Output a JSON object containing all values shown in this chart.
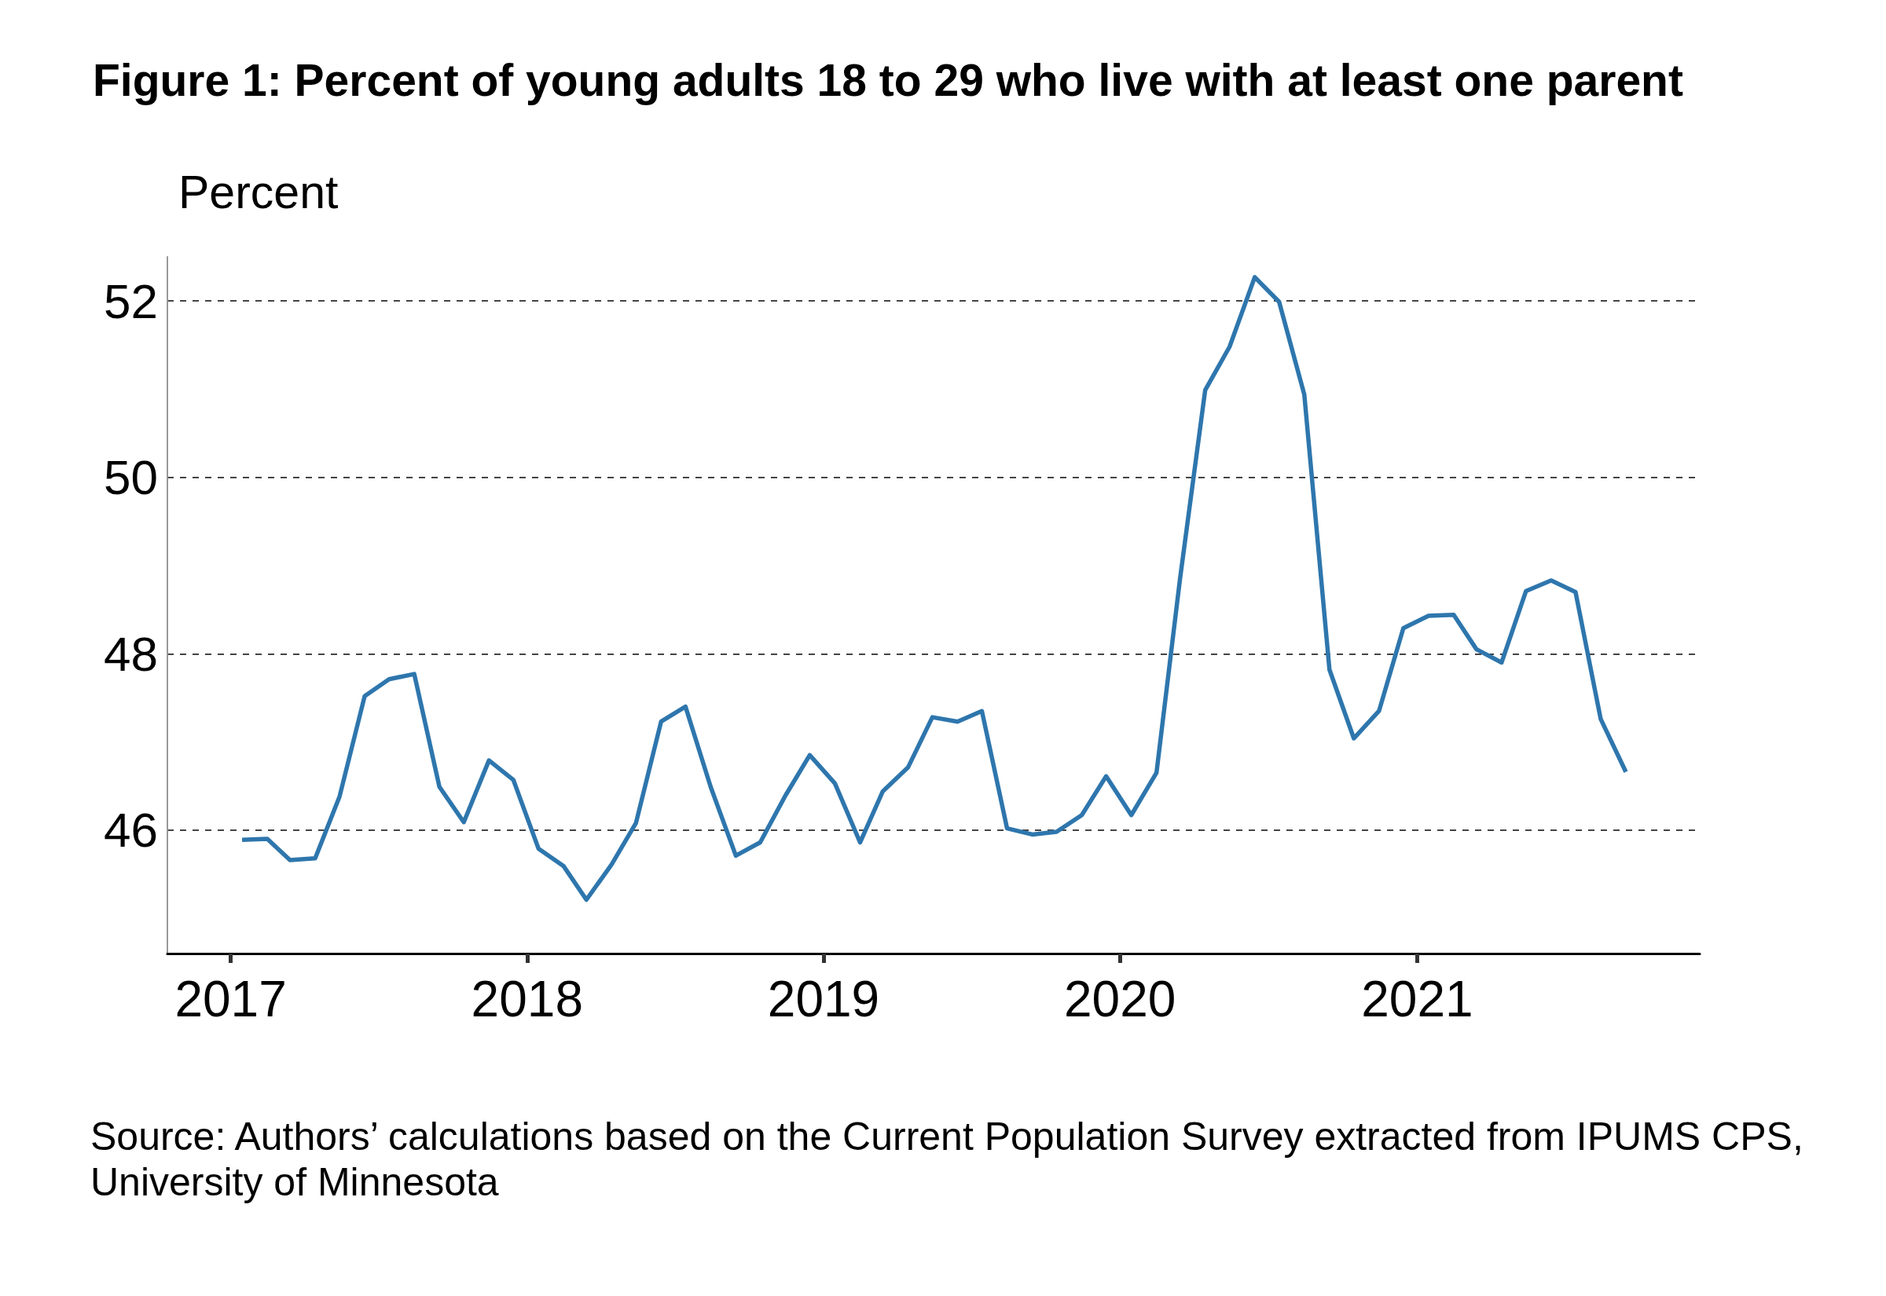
{
  "chart_data": {
    "type": "line",
    "title": "Figure 1: Percent of young adults 18 to 29 who live with at least one parent",
    "ylabel": "Percent",
    "annotations": [
      "Source: Authors’ calculations based on the Current Population Survey extracted from IPUMS CPS, University of Minnesota"
    ],
    "x": [
      "2017-01-15",
      "2017-02-15",
      "2017-03-15",
      "2017-04-15",
      "2017-05-15",
      "2017-06-15",
      "2017-07-15",
      "2017-08-15",
      "2017-09-15",
      "2017-10-15",
      "2017-11-15",
      "2017-12-15",
      "2018-01-15",
      "2018-02-15",
      "2018-03-15",
      "2018-04-15",
      "2018-05-15",
      "2018-06-15",
      "2018-07-15",
      "2018-08-15",
      "2018-09-15",
      "2018-10-15",
      "2018-11-15",
      "2018-12-15",
      "2019-01-15",
      "2019-02-15",
      "2019-03-15",
      "2019-04-15",
      "2019-05-15",
      "2019-06-15",
      "2019-07-15",
      "2019-08-15",
      "2019-09-15",
      "2019-10-15",
      "2019-11-15",
      "2019-12-15",
      "2020-01-15",
      "2020-02-15",
      "2020-03-15",
      "2020-04-15",
      "2020-05-15",
      "2020-06-15",
      "2020-07-15",
      "2020-08-15",
      "2020-09-15",
      "2020-10-15",
      "2020-11-15",
      "2020-12-15",
      "2021-01-15",
      "2021-02-15",
      "2021-03-15",
      "2021-04-15",
      "2021-05-15",
      "2021-06-15",
      "2021-07-15",
      "2021-08-15",
      "2021-09-15"
    ],
    "series": [
      {
        "color": "#2e76ad",
        "values": [
          45.89,
          45.9,
          45.66,
          45.68,
          46.38,
          47.52,
          47.71,
          47.77,
          46.49,
          46.09,
          46.79,
          46.57,
          45.79,
          45.59,
          45.21,
          45.61,
          46.08,
          47.23,
          47.4,
          46.49,
          45.71,
          45.86,
          46.39,
          46.85,
          46.53,
          45.86,
          46.44,
          46.71,
          47.28,
          47.23,
          47.35,
          46.02,
          45.95,
          45.98,
          46.17,
          46.61,
          46.17,
          46.65,
          48.85,
          50.99,
          51.48,
          52.27,
          51.99,
          50.94,
          47.82,
          47.04,
          47.35,
          48.29,
          48.43,
          48.44,
          48.05,
          47.9,
          48.71,
          48.83,
          48.7,
          47.26,
          46.66
        ]
      }
    ],
    "xlim": [
      "2016-10-15",
      "2021-12-15"
    ],
    "xticks": [
      "2017",
      "2018",
      "2019",
      "2020",
      "2021"
    ],
    "ylim": [
      44.6,
      52.5
    ],
    "yticks": [
      46,
      48,
      50,
      52
    ],
    "grid": "y",
    "marker": "none",
    "line_style": "solid"
  }
}
